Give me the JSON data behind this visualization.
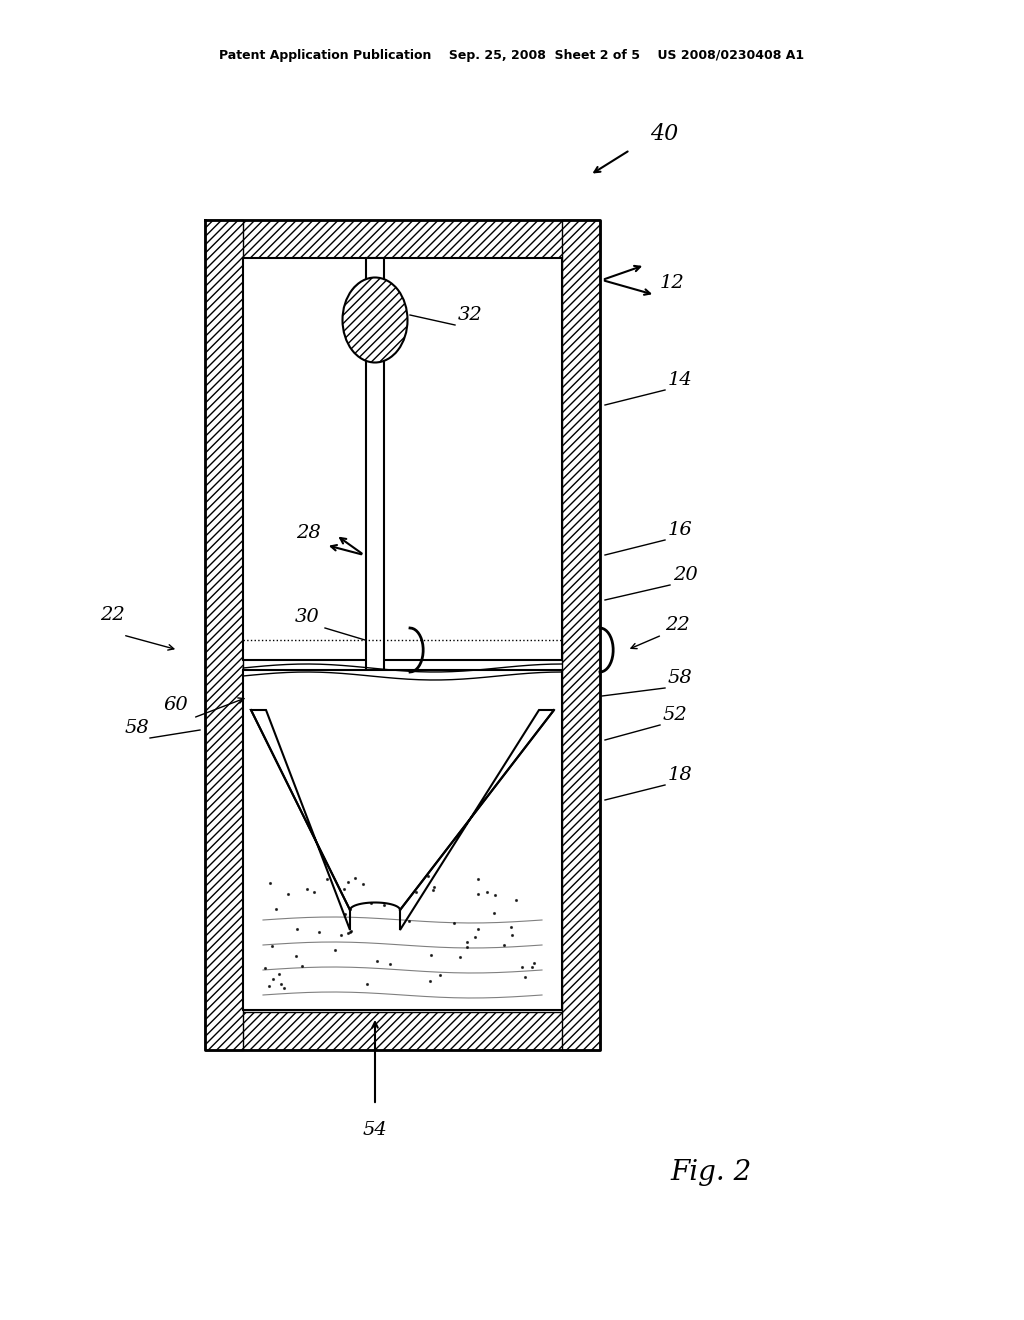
{
  "bg_color": "#ffffff",
  "line_color": "#000000",
  "hatch_color": "#000000",
  "header_text": "Patent Application Publication    Sep. 25, 2008  Sheet 2 of 5    US 2008/0230408 A1",
  "fig_label": "Fig. 2",
  "ref_num_40": "40",
  "ref_num_12": "12",
  "ref_num_14": "14",
  "ref_num_16": "16",
  "ref_num_20": "20",
  "ref_num_22": "22",
  "ref_num_28": "28",
  "ref_num_30": "30",
  "ref_num_32": "32",
  "ref_num_18": "18",
  "ref_num_52": "52",
  "ref_num_54": "54",
  "ref_num_58": "58",
  "ref_num_60": "60"
}
